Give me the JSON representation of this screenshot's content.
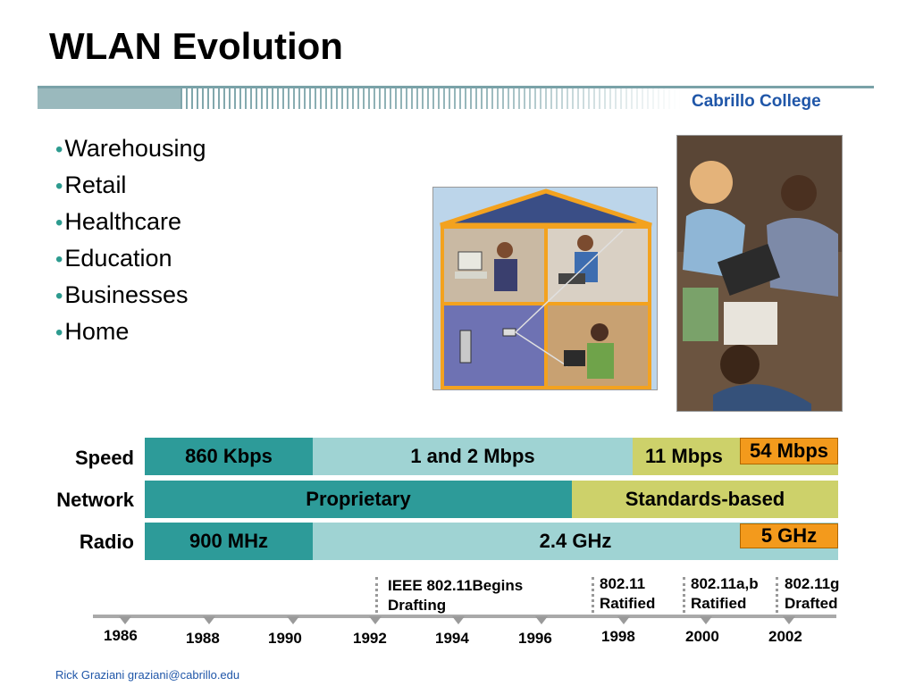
{
  "slide": {
    "title": "WLAN Evolution",
    "college": "Cabrillo College",
    "footer": "Rick Graziani  graziani@cabrillo.edu"
  },
  "bullets": [
    "Warehousing",
    "Retail",
    "Healthcare",
    "Education",
    "Businesses",
    "Home"
  ],
  "timeline": {
    "row_labels": {
      "speed": "Speed",
      "network": "Network",
      "radio": "Radio"
    },
    "speed": {
      "s1": "860 Kbps",
      "s2": "1 and 2 Mbps",
      "s3": "11 Mbps",
      "s4": "54 Mbps"
    },
    "network": {
      "n1": "Proprietary",
      "n2": "Standards-based"
    },
    "radio": {
      "r1": "900 MHz",
      "r2": "2.4 GHz",
      "r3": "5 GHz"
    },
    "years": [
      "1986",
      "1988",
      "1990",
      "1992",
      "1994",
      "1996",
      "1998",
      "2000",
      "2002"
    ],
    "events": [
      {
        "line1": "IEEE 802.11Begins",
        "line2": "Drafting"
      },
      {
        "line1": "802.11",
        "line2": "Ratified"
      },
      {
        "line1": "802.11a,b",
        "line2": "Ratified"
      },
      {
        "line1": "802.11g",
        "line2": "Drafted"
      }
    ]
  },
  "colors": {
    "teal": "#2d9b99",
    "light_teal": "#9fd3d3",
    "olive": "#cdd16a",
    "orange": "#f39a1c",
    "bullet": "#2d9b8f",
    "college_blue": "#1f56a8"
  }
}
